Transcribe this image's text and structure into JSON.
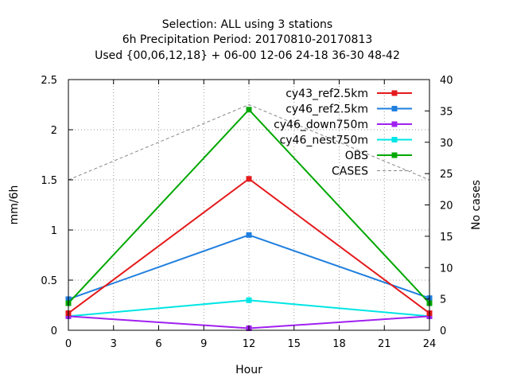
{
  "chart_data": {
    "type": "line",
    "title_lines": [
      "Selection: ALL using     3 stations",
      "6h Precipitation   Period: 20170810-20170813",
      "Used {00,06,12,18} + 06-00 12-06 24-18 36-30 48-42"
    ],
    "xlabel": "Hour",
    "ylabel": "mm/6h",
    "y2label": "No cases",
    "xlim": [
      0,
      24
    ],
    "ylim": [
      0,
      2.5
    ],
    "y2lim": [
      0,
      40
    ],
    "xticks": [
      "0",
      "3",
      "6",
      "9",
      "12",
      "15",
      "18",
      "21",
      "24"
    ],
    "yticks": [
      "0",
      "0.5",
      "1",
      "1.5",
      "2",
      "2.5"
    ],
    "y2ticks": [
      "0",
      "5",
      "10",
      "15",
      "20",
      "25",
      "30",
      "35",
      "40"
    ],
    "grid": true,
    "legend_position": "top-right",
    "x": [
      0,
      12,
      24
    ],
    "series": [
      {
        "name": "cy43_ref2.5km",
        "color": "#e41a1c",
        "values": [
          0.17,
          1.51,
          0.17
        ],
        "axis": "y"
      },
      {
        "name": "cy46_ref2.5km",
        "color": "#1f7fdf",
        "values": [
          0.31,
          0.95,
          0.32
        ],
        "axis": "y"
      },
      {
        "name": "cy46_down750m",
        "color": "#a020f0",
        "values": [
          0.14,
          0.02,
          0.14
        ],
        "axis": "y"
      },
      {
        "name": "cy46_nest750m",
        "color": "#00e5e5",
        "values": [
          0.14,
          0.3,
          0.14
        ],
        "axis": "y"
      },
      {
        "name": "OBS",
        "color": "#00a800",
        "values": [
          0.27,
          2.2,
          0.27
        ],
        "axis": "y"
      },
      {
        "name": "CASES",
        "color": "#888888",
        "values": [
          24,
          36,
          24
        ],
        "axis": "y2",
        "dashed": true
      }
    ]
  }
}
